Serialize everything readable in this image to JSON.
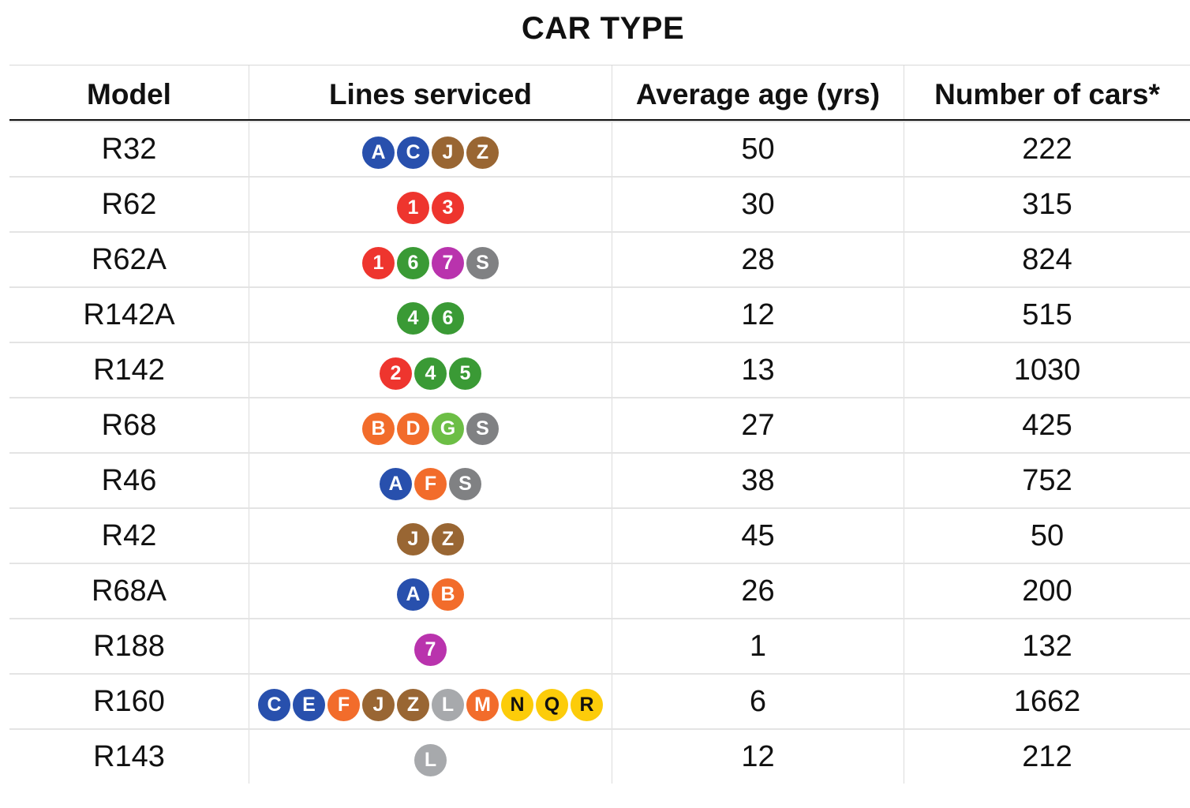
{
  "title": "CAR TYPE",
  "headers": {
    "model": "Model",
    "lines": "Lines serviced",
    "age": "Average age (yrs)",
    "cars": "Number of cars*"
  },
  "line_colors": {
    "A": "#2850ad",
    "C": "#2850ad",
    "E": "#2850ad",
    "J": "#996633",
    "Z": "#996633",
    "1": "#ee352e",
    "2": "#ee352e",
    "3": "#ee352e",
    "4": "#3a9a35",
    "5": "#3a9a35",
    "6": "#3a9a35",
    "7": "#b933ad",
    "S": "#808183",
    "B": "#f26c2b",
    "D": "#f26c2b",
    "F": "#f26c2b",
    "M": "#f26c2b",
    "G": "#6cbe45",
    "L": "#a7a9ac",
    "N": "#fccc0a",
    "Q": "#fccc0a",
    "R": "#fccc0a"
  },
  "rows": [
    {
      "model": "R32",
      "lines": [
        "A",
        "C",
        "J",
        "Z"
      ],
      "age": "50",
      "cars": "222"
    },
    {
      "model": "R62",
      "lines": [
        "1",
        "3"
      ],
      "age": "30",
      "cars": "315"
    },
    {
      "model": "R62A",
      "lines": [
        "1",
        "6",
        "7",
        "S"
      ],
      "age": "28",
      "cars": "824"
    },
    {
      "model": "R142A",
      "lines": [
        "4",
        "6"
      ],
      "age": "12",
      "cars": "515"
    },
    {
      "model": "R142",
      "lines": [
        "2",
        "4",
        "5"
      ],
      "age": "13",
      "cars": "1030"
    },
    {
      "model": "R68",
      "lines": [
        "B",
        "D",
        "G",
        "S"
      ],
      "age": "27",
      "cars": "425"
    },
    {
      "model": "R46",
      "lines": [
        "A",
        "F",
        "S"
      ],
      "age": "38",
      "cars": "752"
    },
    {
      "model": "R42",
      "lines": [
        "J",
        "Z"
      ],
      "age": "45",
      "cars": "50"
    },
    {
      "model": "R68A",
      "lines": [
        "A",
        "B"
      ],
      "age": "26",
      "cars": "200"
    },
    {
      "model": "R188",
      "lines": [
        "7"
      ],
      "age": "1",
      "cars": "132"
    },
    {
      "model": "R160",
      "lines": [
        "C",
        "E",
        "F",
        "J",
        "Z",
        "L",
        "M",
        "N",
        "Q",
        "R"
      ],
      "age": "6",
      "cars": "1662"
    },
    {
      "model": "R143",
      "lines": [
        "L"
      ],
      "age": "12",
      "cars": "212"
    }
  ]
}
